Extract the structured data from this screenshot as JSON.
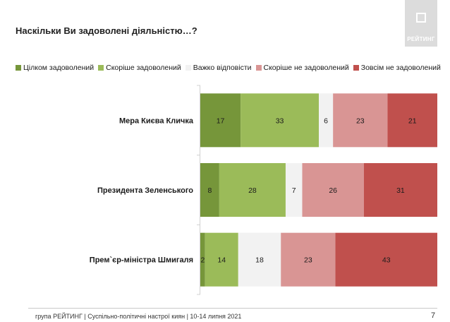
{
  "header": {
    "title": "Наскільки Ви задоволені діяльністю…?",
    "logo_text": "РЕЙТИНГ"
  },
  "footer": {
    "text": "група РЕЙТИНГ | Суспільно-політичні настрої киян | 10-14 липня 2021",
    "page": "7"
  },
  "chart_data": {
    "type": "bar",
    "orientation": "horizontal",
    "stacked": true,
    "normalized": true,
    "title": "Наскільки Ви задоволені діяльністю…?",
    "xlim": [
      0,
      100
    ],
    "legend_position": "top",
    "categories": [
      "Мера Києва Кличка",
      "Президента Зеленського",
      "Прем`єр-міністра Шмигаля"
    ],
    "series": [
      {
        "name": "Цілком задоволений",
        "color": "#76963a",
        "text_color": "#1a1a1a",
        "values": [
          17,
          8,
          2
        ]
      },
      {
        "name": "Скоріше задоволений",
        "color": "#9bbb59",
        "text_color": "#1a1a1a",
        "values": [
          33,
          28,
          14
        ]
      },
      {
        "name": "Важко відповісти",
        "color": "#f2f2f2",
        "text_color": "#1a1a1a",
        "values": [
          6,
          7,
          18
        ]
      },
      {
        "name": "Скоріше не задоволений",
        "color": "#d99594",
        "text_color": "#1a1a1a",
        "values": [
          23,
          26,
          23
        ]
      },
      {
        "name": "Зовсім не задоволений",
        "color": "#c0504d",
        "text_color": "#1a1a1a",
        "values": [
          21,
          31,
          43
        ]
      }
    ]
  }
}
